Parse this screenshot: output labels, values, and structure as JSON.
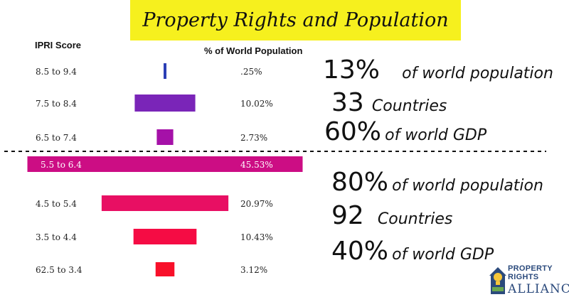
{
  "title": "Property Rights and Population",
  "headers": {
    "score": "IPRI Score",
    "population": "% of World Population"
  },
  "chart_data": {
    "type": "bar",
    "orientation": "horizontal-centered",
    "categories": [
      "8.5 to 9.4",
      "7.5 to 8.4",
      "6.5 to 7.4",
      "5.5 to 6.4",
      "4.5 to 5.4",
      "3.5 to 4.4",
      "62.5 to 3.4"
    ],
    "values": [
      0.25,
      10.02,
      2.73,
      45.53,
      20.97,
      10.43,
      3.12
    ],
    "value_labels": [
      ".25%",
      "10.02%",
      "2.73%",
      "45.53%",
      "20.97%",
      "10.43%",
      "3.12%"
    ],
    "colors": [
      "#2b3fb5",
      "#7a25b8",
      "#a511a8",
      "#cc0d84",
      "#e80f63",
      "#f50c44",
      "#f8102a"
    ],
    "xlabel": "% of World Population",
    "ylabel": "IPRI Score",
    "divider_after_index": 2
  },
  "groups": [
    {
      "pop_value": "13%",
      "pop_text": "of world population",
      "countries_value": "33",
      "countries_text": "Countries",
      "gdp_value": "60%",
      "gdp_text": "of world GDP"
    },
    {
      "pop_value": "80%",
      "pop_text": "of world population",
      "countries_value": "92",
      "countries_text": "Countries",
      "gdp_value": "40%",
      "gdp_text": "of world GDP"
    }
  ],
  "logo": {
    "line1": "PROPERTY RIGHTS",
    "line2": "ALLIANCE"
  }
}
